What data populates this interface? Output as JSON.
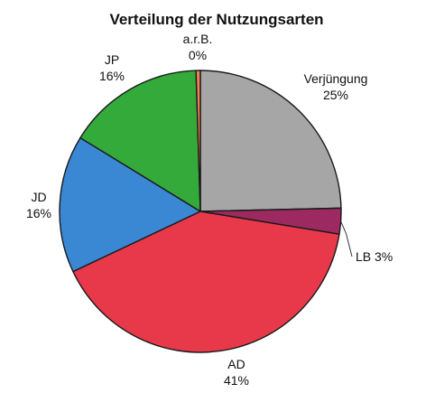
{
  "chart_data": {
    "type": "pie",
    "title": "Verteilung der Nutzungsarten",
    "start_angle_deg": 90,
    "direction": "clockwise",
    "slices": [
      {
        "label": "Verjüngung",
        "value": 25,
        "value_text": "25%",
        "color": "#a6a6a6"
      },
      {
        "label": "LB",
        "value": 3,
        "value_text": "3%",
        "color": "#9c2a60"
      },
      {
        "label": "AD",
        "value": 41,
        "value_text": "41%",
        "color": "#e8394a"
      },
      {
        "label": "JD",
        "value": 16,
        "value_text": "16%",
        "color": "#3a87d4"
      },
      {
        "label": "JP",
        "value": 16,
        "value_text": "16%",
        "color": "#33aa3a"
      },
      {
        "label": "a.r.B.",
        "value": 0.5,
        "value_text": "0%",
        "color": "#f07d55"
      }
    ]
  }
}
